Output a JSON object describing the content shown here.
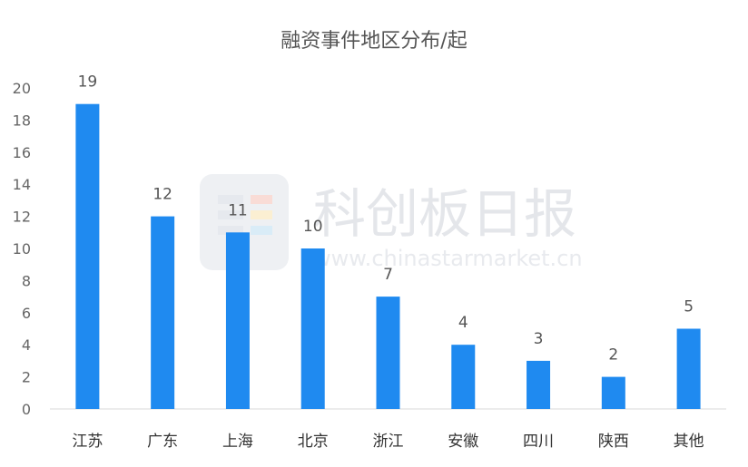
{
  "chart_data": {
    "type": "bar",
    "title": "融资事件地区分布/起",
    "categories": [
      "江苏",
      "广东",
      "上海",
      "北京",
      "浙江",
      "安徽",
      "四川",
      "陕西",
      "其他"
    ],
    "values": [
      19,
      12,
      11,
      10,
      7,
      4,
      3,
      2,
      5
    ],
    "ylim": [
      0,
      20
    ],
    "yticks": [
      "0",
      "2",
      "4",
      "6",
      "8",
      "10",
      "12",
      "14",
      "16",
      "18",
      "20"
    ],
    "grid": false,
    "legend": "none",
    "bar_color": "#1f8af0",
    "data_labels": [
      "19",
      "12",
      "11",
      "10",
      "7",
      "4",
      "3",
      "2",
      "5"
    ]
  },
  "watermark": {
    "text": "科创板日报",
    "url": "www.chinastarmarket.cn"
  }
}
